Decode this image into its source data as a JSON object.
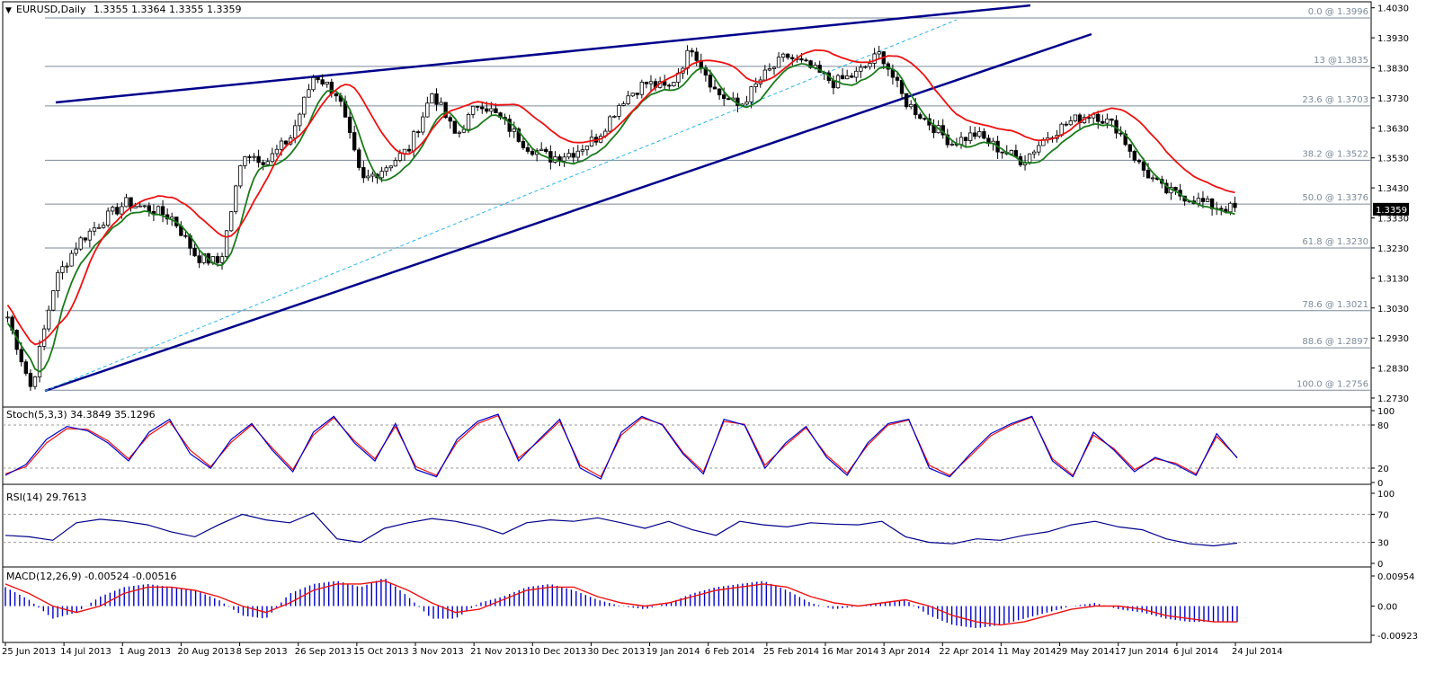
{
  "header": {
    "symbol": "EURUSD,Daily",
    "ohlc": "1.3355 1.3364 1.3355 1.3359"
  },
  "colors": {
    "background": "#ffffff",
    "frame": "#000000",
    "candle": "#000000",
    "trendline": "#00008b",
    "fib_line": "#7a8a9a",
    "fib_label": "#7a8a9a",
    "fast_ma": "#1a7a1a",
    "slow_ma": "#ee1111",
    "ma_flat_dash": "#ffd200",
    "diag_dashed": "#26b5e8",
    "stoch_main": "#0000cc",
    "stoch_signal": "#ee1111",
    "rsi": "#00008b",
    "macd_hist": "#0000cc",
    "macd_signal": "#ee1111",
    "level_dash": "#999999",
    "price_tag_bg": "#000000",
    "price_tag_fg": "#ffffff"
  },
  "price_panel": {
    "last_price_label": "1.3359",
    "y_ticks": [
      "1.4030",
      "1.3930",
      "1.3830",
      "1.3730",
      "1.3630",
      "1.3530",
      "1.3430",
      "1.3330",
      "1.3230",
      "1.3130",
      "1.3030",
      "1.2930",
      "1.2830",
      "1.2730"
    ],
    "fib_labels": [
      "0.0 @ 1.3996",
      "13 @1.3835",
      "23.6 @ 1.3703",
      "38.2 @ 1.3522",
      "50.0 @ 1.3376",
      "61.8 @ 1.3230",
      "78.6 @ 1.3021",
      "88.6 @ 1.2897",
      "100.0 @ 1.2756"
    ]
  },
  "stoch_panel": {
    "title": "Stoch(5,3,3) 34.3849 35.1296",
    "y_ticks": [
      "100",
      "80",
      "20",
      "0"
    ]
  },
  "rsi_panel": {
    "title": "RSI(14) 29.7613",
    "y_ticks": [
      "100",
      "70",
      "30",
      "0"
    ]
  },
  "macd_panel": {
    "title": "MACD(12,26,9) -0.00524 -0.00516",
    "y_ticks": [
      "0.00954",
      "0.00",
      "-0.00923"
    ]
  },
  "x_axis": {
    "labels": [
      "25 Jun 2013",
      "14 Jul 2013",
      "1 Aug 2013",
      "20 Aug 2013",
      "8 Sep 2013",
      "26 Sep 2013",
      "15 Oct 2013",
      "3 Nov 2013",
      "21 Nov 2013",
      "10 Dec 2013",
      "30 Dec 2013",
      "19 Jan 2014",
      "6 Feb 2014",
      "25 Feb 2014",
      "16 Mar 2014",
      "3 Apr 2014",
      "22 Apr 2014",
      "11 May 2014",
      "29 May 2014",
      "17 Jun 2014",
      "6 Jul 2014",
      "24 Jul 2014"
    ]
  },
  "chart_data": [
    {
      "type": "candlestick",
      "title": "EURUSD,Daily",
      "ylim": [
        1.27,
        1.405
      ],
      "x": [
        "25 Jun 2013",
        "14 Jul 2013",
        "1 Aug 2013",
        "20 Aug 2013",
        "8 Sep 2013",
        "26 Sep 2013",
        "15 Oct 2013",
        "3 Nov 2013",
        "21 Nov 2013",
        "10 Dec 2013",
        "30 Dec 2013",
        "19 Jan 2014",
        "6 Feb 2014",
        "25 Feb 2014",
        "16 Mar 2014",
        "3 Apr 2014",
        "22 Apr 2014",
        "11 May 2014",
        "29 May 2014",
        "17 Jun 2014",
        "6 Jul 2014",
        "24 Jul 2014"
      ],
      "close_path": [
        1.3,
        1.276,
        1.312,
        1.325,
        1.332,
        1.338,
        1.336,
        1.333,
        1.32,
        1.318,
        1.355,
        1.352,
        1.36,
        1.381,
        1.374,
        1.345,
        1.35,
        1.356,
        1.375,
        1.36,
        1.372,
        1.365,
        1.357,
        1.353,
        1.355,
        1.36,
        1.372,
        1.378,
        1.376,
        1.39,
        1.375,
        1.37,
        1.38,
        1.387,
        1.383,
        1.378,
        1.381,
        1.388,
        1.372,
        1.365,
        1.358,
        1.361,
        1.356,
        1.352,
        1.36,
        1.365,
        1.368,
        1.363,
        1.35,
        1.342,
        1.34,
        1.337,
        1.336
      ],
      "fibonacci_levels": [
        {
          "ratio": 0.0,
          "price": 1.3996
        },
        {
          "ratio": 13,
          "price": 1.3835
        },
        {
          "ratio": 23.6,
          "price": 1.3703
        },
        {
          "ratio": 38.2,
          "price": 1.3522
        },
        {
          "ratio": 50.0,
          "price": 1.3376
        },
        {
          "ratio": 61.8,
          "price": 1.323
        },
        {
          "ratio": 78.6,
          "price": 1.3021
        },
        {
          "ratio": 88.6,
          "price": 1.2897
        },
        {
          "ratio": 100.0,
          "price": 1.2756
        }
      ],
      "last_price": 1.3359
    },
    {
      "type": "line",
      "title": "Stoch(5,3,3) 34.3849 35.1296",
      "ylim": [
        0,
        100
      ],
      "levels": [
        80,
        20
      ],
      "series": [
        {
          "name": "main",
          "values": [
            10,
            25,
            60,
            78,
            72,
            55,
            30,
            70,
            88,
            40,
            20,
            60,
            82,
            45,
            15,
            70,
            92,
            55,
            30,
            82,
            18,
            8,
            60,
            85,
            95,
            30,
            60,
            88,
            20,
            5,
            70,
            92,
            80,
            40,
            12,
            88,
            80,
            20,
            55,
            78,
            35,
            10,
            55,
            82,
            88,
            20,
            8,
            40,
            68,
            82,
            92,
            30,
            8,
            70,
            45,
            15,
            35,
            25,
            10,
            68,
            34
          ]
        },
        {
          "name": "signal",
          "values": [
            12,
            22,
            55,
            75,
            74,
            58,
            33,
            66,
            85,
            45,
            22,
            56,
            80,
            48,
            18,
            66,
            90,
            58,
            33,
            78,
            22,
            10,
            56,
            82,
            93,
            34,
            58,
            85,
            24,
            8,
            66,
            90,
            81,
            42,
            15,
            85,
            81,
            24,
            52,
            76,
            38,
            13,
            52,
            80,
            87,
            24,
            10,
            37,
            65,
            80,
            91,
            33,
            10,
            66,
            47,
            18,
            33,
            27,
            12,
            64,
            35
          ]
        }
      ]
    },
    {
      "type": "line",
      "title": "RSI(14) 29.7613",
      "ylim": [
        0,
        100
      ],
      "levels": [
        70,
        30
      ],
      "series": [
        {
          "name": "rsi",
          "values": [
            40,
            38,
            33,
            58,
            63,
            60,
            55,
            45,
            38,
            55,
            70,
            62,
            58,
            72,
            35,
            30,
            50,
            58,
            64,
            60,
            53,
            42,
            58,
            62,
            60,
            65,
            58,
            50,
            60,
            48,
            40,
            60,
            55,
            52,
            58,
            56,
            55,
            60,
            38,
            30,
            28,
            35,
            33,
            40,
            45,
            55,
            60,
            52,
            48,
            35,
            28,
            25,
            29
          ]
        }
      ]
    },
    {
      "type": "bar",
      "title": "MACD(12,26,9) -0.00524 -0.00516",
      "ylim": [
        -0.00923,
        0.00954
      ],
      "series": [
        {
          "name": "histogram",
          "values": [
            0.006,
            0.002,
            -0.004,
            -0.002,
            0.003,
            0.006,
            0.007,
            0.006,
            0.005,
            0.002,
            -0.003,
            -0.004,
            0.004,
            0.007,
            0.008,
            0.006,
            0.009,
            0.003,
            -0.004,
            -0.004,
            0.001,
            0.003,
            0.006,
            0.007,
            0.005,
            0.002,
            0.0,
            -0.001,
            0.001,
            0.004,
            0.006,
            0.007,
            0.008,
            0.005,
            0.001,
            -0.001,
            0.0,
            0.001,
            0.002,
            -0.003,
            -0.006,
            -0.007,
            -0.006,
            -0.004,
            -0.002,
            0.0,
            0.001,
            -0.001,
            -0.002,
            -0.004,
            -0.005,
            -0.005,
            -0.005
          ]
        },
        {
          "name": "signal",
          "values": [
            0.007,
            0.004,
            0.0,
            -0.002,
            0.0,
            0.004,
            0.006,
            0.006,
            0.005,
            0.003,
            0.0,
            -0.002,
            0.001,
            0.005,
            0.007,
            0.007,
            0.008,
            0.005,
            0.001,
            -0.002,
            -0.001,
            0.002,
            0.005,
            0.006,
            0.006,
            0.003,
            0.001,
            0.0,
            0.001,
            0.003,
            0.005,
            0.006,
            0.007,
            0.006,
            0.003,
            0.001,
            0.0,
            0.001,
            0.002,
            0.0,
            -0.003,
            -0.005,
            -0.006,
            -0.005,
            -0.003,
            -0.001,
            0.0,
            0.0,
            -0.001,
            -0.003,
            -0.004,
            -0.005,
            -0.005
          ]
        }
      ]
    }
  ]
}
